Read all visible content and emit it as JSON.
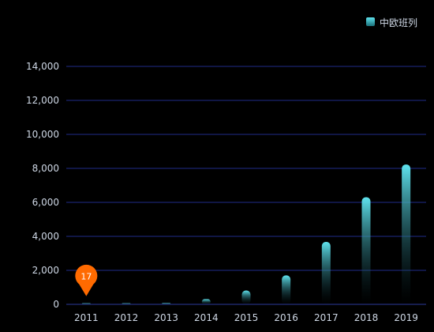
{
  "chart_data": {
    "type": "bar",
    "categories": [
      "2011",
      "2012",
      "2013",
      "2014",
      "2015",
      "2016",
      "2017",
      "2018",
      "2019"
    ],
    "series": [
      {
        "name": "中欧班列",
        "values": [
          17,
          42,
          80,
          308,
          815,
          1702,
          3673,
          6300,
          8225
        ]
      }
    ],
    "ylim": [
      0,
      14000
    ],
    "yticks": [
      0,
      2000,
      4000,
      6000,
      8000,
      10000,
      12000,
      14000
    ],
    "grid": true,
    "legend": "top-right",
    "marker": {
      "category": "2011",
      "label": "17"
    },
    "colors": {
      "background": "#000000",
      "bar_top": "#5fe3ee",
      "bar_bottom": "#0a2c33",
      "grid": "#1f2d8a",
      "axis": "#2b3a9a",
      "marker": "#ff6a00"
    }
  }
}
